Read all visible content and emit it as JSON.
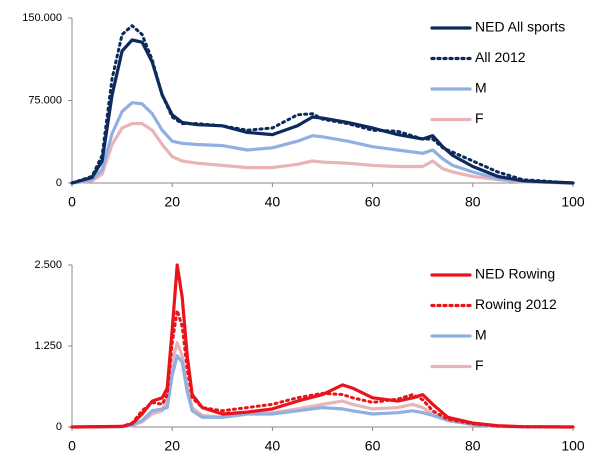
{
  "chart_data": [
    {
      "type": "line",
      "x": [
        0,
        4,
        6,
        8,
        10,
        12,
        14,
        16,
        18,
        20,
        22,
        25,
        30,
        35,
        40,
        45,
        48,
        50,
        55,
        60,
        65,
        70,
        72,
        74,
        76,
        80,
        85,
        90,
        100
      ],
      "xlim": [
        0,
        100
      ],
      "xticks": [
        0,
        20,
        40,
        60,
        80,
        100
      ],
      "ylim": [
        0,
        150000
      ],
      "yticks": [
        0,
        {
          "value": 75000,
          "label": "75.000"
        },
        {
          "value": 150000,
          "label": "150.000"
        }
      ],
      "legend": "upper right",
      "series": [
        {
          "name": "NED All sports",
          "color": "#0d2a5c",
          "line_style": "solid",
          "values": [
            0,
            5000,
            20000,
            80000,
            120000,
            130000,
            128000,
            110000,
            80000,
            62000,
            55000,
            53000,
            52000,
            46000,
            44000,
            52000,
            60000,
            59000,
            55000,
            50000,
            44000,
            40000,
            43000,
            33000,
            25000,
            15000,
            6000,
            2000,
            0
          ]
        },
        {
          "name": "All 2012",
          "color": "#0d2a5c",
          "line_style": "dotted",
          "values": [
            0,
            6000,
            25000,
            95000,
            135000,
            143000,
            135000,
            112000,
            80000,
            60000,
            54000,
            54000,
            52000,
            48000,
            50000,
            62000,
            63000,
            58000,
            54000,
            48000,
            47000,
            40000,
            40000,
            32000,
            28000,
            20000,
            10000,
            3000,
            0
          ]
        },
        {
          "name": "M",
          "color": "#8fb0e0",
          "line_style": "solid",
          "values": [
            0,
            3000,
            12000,
            45000,
            65000,
            73000,
            72000,
            63000,
            48000,
            38000,
            36000,
            35000,
            34000,
            30000,
            32000,
            38000,
            43000,
            42000,
            38000,
            33000,
            30000,
            27000,
            30000,
            22000,
            16000,
            10000,
            4000,
            1500,
            0
          ]
        },
        {
          "name": "F",
          "color": "#e8b4b8",
          "line_style": "solid",
          "values": [
            0,
            2000,
            8000,
            35000,
            50000,
            54000,
            54000,
            48000,
            35000,
            24000,
            20000,
            18000,
            16000,
            14000,
            14000,
            17000,
            20000,
            19000,
            18000,
            16000,
            15000,
            15000,
            20000,
            13000,
            10000,
            6000,
            3000,
            1000,
            0
          ]
        }
      ]
    },
    {
      "type": "line",
      "x": [
        0,
        10,
        12,
        14,
        16,
        18,
        19,
        20,
        21,
        22,
        23,
        24,
        26,
        30,
        35,
        40,
        45,
        50,
        54,
        56,
        60,
        65,
        68,
        70,
        72,
        75,
        80,
        85,
        90,
        100
      ],
      "xlim": [
        0,
        100
      ],
      "xticks": [
        0,
        20,
        40,
        60,
        80,
        100
      ],
      "ylim": [
        0,
        2500
      ],
      "yticks": [
        0,
        {
          "value": 1250,
          "label": "1.250"
        },
        {
          "value": 2500,
          "label": "2.500"
        }
      ],
      "legend": "upper right",
      "series": [
        {
          "name": "NED Rowing",
          "color": "#e8141c",
          "line_style": "solid",
          "values": [
            0,
            10,
            50,
            200,
            400,
            450,
            600,
            1500,
            2500,
            2000,
            1100,
            500,
            300,
            200,
            230,
            280,
            400,
            500,
            650,
            600,
            450,
            400,
            450,
            500,
            350,
            150,
            60,
            20,
            5,
            0
          ]
        },
        {
          "name": "Rowing 2012",
          "color": "#e8141c",
          "line_style": "dotted",
          "values": [
            0,
            10,
            60,
            250,
            380,
            350,
            500,
            1300,
            1800,
            1550,
            900,
            450,
            300,
            250,
            300,
            350,
            450,
            520,
            500,
            450,
            380,
            430,
            500,
            420,
            250,
            120,
            50,
            15,
            5,
            0
          ]
        },
        {
          "name": "M",
          "color": "#8fb0e0",
          "line_style": "solid",
          "values": [
            0,
            5,
            30,
            100,
            250,
            280,
            300,
            800,
            1100,
            1000,
            550,
            250,
            150,
            150,
            200,
            200,
            250,
            300,
            280,
            250,
            200,
            220,
            250,
            220,
            180,
            100,
            40,
            10,
            3,
            0
          ]
        },
        {
          "name": "F",
          "color": "#e8b4b8",
          "line_style": "solid",
          "values": [
            0,
            5,
            20,
            80,
            200,
            250,
            450,
            1000,
            1300,
            1100,
            600,
            300,
            180,
            150,
            200,
            220,
            280,
            350,
            400,
            350,
            280,
            300,
            350,
            300,
            200,
            100,
            40,
            10,
            3,
            0
          ]
        }
      ]
    }
  ]
}
